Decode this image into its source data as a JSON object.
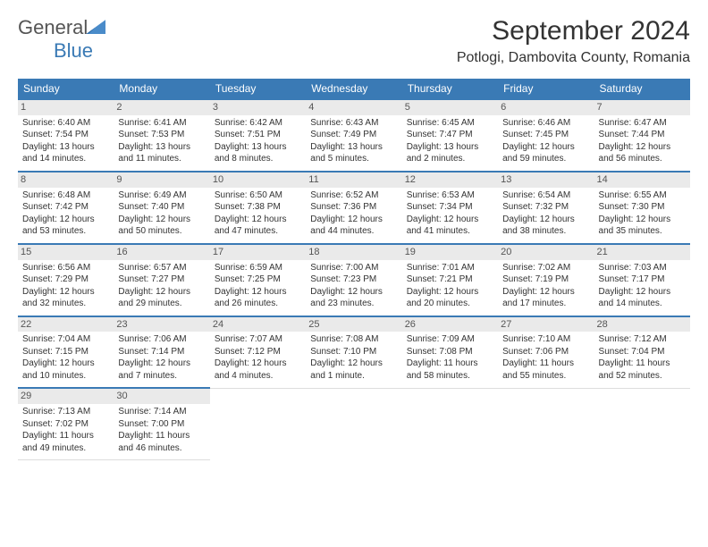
{
  "logo": {
    "text1": "General",
    "text2": "Blue"
  },
  "title": "September 2024",
  "location": "Potlogi, Dambovita County, Romania",
  "weekdays": [
    "Sunday",
    "Monday",
    "Tuesday",
    "Wednesday",
    "Thursday",
    "Friday",
    "Saturday"
  ],
  "colors": {
    "header_bg": "#3a7ab5",
    "row_accent": "#3a7ab5",
    "day_bg": "#eaeaea"
  },
  "weeks": [
    [
      {
        "n": "1",
        "r": "Sunrise: 6:40 AM",
        "s": "Sunset: 7:54 PM",
        "d1": "Daylight: 13 hours",
        "d2": "and 14 minutes."
      },
      {
        "n": "2",
        "r": "Sunrise: 6:41 AM",
        "s": "Sunset: 7:53 PM",
        "d1": "Daylight: 13 hours",
        "d2": "and 11 minutes."
      },
      {
        "n": "3",
        "r": "Sunrise: 6:42 AM",
        "s": "Sunset: 7:51 PM",
        "d1": "Daylight: 13 hours",
        "d2": "and 8 minutes."
      },
      {
        "n": "4",
        "r": "Sunrise: 6:43 AM",
        "s": "Sunset: 7:49 PM",
        "d1": "Daylight: 13 hours",
        "d2": "and 5 minutes."
      },
      {
        "n": "5",
        "r": "Sunrise: 6:45 AM",
        "s": "Sunset: 7:47 PM",
        "d1": "Daylight: 13 hours",
        "d2": "and 2 minutes."
      },
      {
        "n": "6",
        "r": "Sunrise: 6:46 AM",
        "s": "Sunset: 7:45 PM",
        "d1": "Daylight: 12 hours",
        "d2": "and 59 minutes."
      },
      {
        "n": "7",
        "r": "Sunrise: 6:47 AM",
        "s": "Sunset: 7:44 PM",
        "d1": "Daylight: 12 hours",
        "d2": "and 56 minutes."
      }
    ],
    [
      {
        "n": "8",
        "r": "Sunrise: 6:48 AM",
        "s": "Sunset: 7:42 PM",
        "d1": "Daylight: 12 hours",
        "d2": "and 53 minutes."
      },
      {
        "n": "9",
        "r": "Sunrise: 6:49 AM",
        "s": "Sunset: 7:40 PM",
        "d1": "Daylight: 12 hours",
        "d2": "and 50 minutes."
      },
      {
        "n": "10",
        "r": "Sunrise: 6:50 AM",
        "s": "Sunset: 7:38 PM",
        "d1": "Daylight: 12 hours",
        "d2": "and 47 minutes."
      },
      {
        "n": "11",
        "r": "Sunrise: 6:52 AM",
        "s": "Sunset: 7:36 PM",
        "d1": "Daylight: 12 hours",
        "d2": "and 44 minutes."
      },
      {
        "n": "12",
        "r": "Sunrise: 6:53 AM",
        "s": "Sunset: 7:34 PM",
        "d1": "Daylight: 12 hours",
        "d2": "and 41 minutes."
      },
      {
        "n": "13",
        "r": "Sunrise: 6:54 AM",
        "s": "Sunset: 7:32 PM",
        "d1": "Daylight: 12 hours",
        "d2": "and 38 minutes."
      },
      {
        "n": "14",
        "r": "Sunrise: 6:55 AM",
        "s": "Sunset: 7:30 PM",
        "d1": "Daylight: 12 hours",
        "d2": "and 35 minutes."
      }
    ],
    [
      {
        "n": "15",
        "r": "Sunrise: 6:56 AM",
        "s": "Sunset: 7:29 PM",
        "d1": "Daylight: 12 hours",
        "d2": "and 32 minutes."
      },
      {
        "n": "16",
        "r": "Sunrise: 6:57 AM",
        "s": "Sunset: 7:27 PM",
        "d1": "Daylight: 12 hours",
        "d2": "and 29 minutes."
      },
      {
        "n": "17",
        "r": "Sunrise: 6:59 AM",
        "s": "Sunset: 7:25 PM",
        "d1": "Daylight: 12 hours",
        "d2": "and 26 minutes."
      },
      {
        "n": "18",
        "r": "Sunrise: 7:00 AM",
        "s": "Sunset: 7:23 PM",
        "d1": "Daylight: 12 hours",
        "d2": "and 23 minutes."
      },
      {
        "n": "19",
        "r": "Sunrise: 7:01 AM",
        "s": "Sunset: 7:21 PM",
        "d1": "Daylight: 12 hours",
        "d2": "and 20 minutes."
      },
      {
        "n": "20",
        "r": "Sunrise: 7:02 AM",
        "s": "Sunset: 7:19 PM",
        "d1": "Daylight: 12 hours",
        "d2": "and 17 minutes."
      },
      {
        "n": "21",
        "r": "Sunrise: 7:03 AM",
        "s": "Sunset: 7:17 PM",
        "d1": "Daylight: 12 hours",
        "d2": "and 14 minutes."
      }
    ],
    [
      {
        "n": "22",
        "r": "Sunrise: 7:04 AM",
        "s": "Sunset: 7:15 PM",
        "d1": "Daylight: 12 hours",
        "d2": "and 10 minutes."
      },
      {
        "n": "23",
        "r": "Sunrise: 7:06 AM",
        "s": "Sunset: 7:14 PM",
        "d1": "Daylight: 12 hours",
        "d2": "and 7 minutes."
      },
      {
        "n": "24",
        "r": "Sunrise: 7:07 AM",
        "s": "Sunset: 7:12 PM",
        "d1": "Daylight: 12 hours",
        "d2": "and 4 minutes."
      },
      {
        "n": "25",
        "r": "Sunrise: 7:08 AM",
        "s": "Sunset: 7:10 PM",
        "d1": "Daylight: 12 hours",
        "d2": "and 1 minute."
      },
      {
        "n": "26",
        "r": "Sunrise: 7:09 AM",
        "s": "Sunset: 7:08 PM",
        "d1": "Daylight: 11 hours",
        "d2": "and 58 minutes."
      },
      {
        "n": "27",
        "r": "Sunrise: 7:10 AM",
        "s": "Sunset: 7:06 PM",
        "d1": "Daylight: 11 hours",
        "d2": "and 55 minutes."
      },
      {
        "n": "28",
        "r": "Sunrise: 7:12 AM",
        "s": "Sunset: 7:04 PM",
        "d1": "Daylight: 11 hours",
        "d2": "and 52 minutes."
      }
    ],
    [
      {
        "n": "29",
        "r": "Sunrise: 7:13 AM",
        "s": "Sunset: 7:02 PM",
        "d1": "Daylight: 11 hours",
        "d2": "and 49 minutes."
      },
      {
        "n": "30",
        "r": "Sunrise: 7:14 AM",
        "s": "Sunset: 7:00 PM",
        "d1": "Daylight: 11 hours",
        "d2": "and 46 minutes."
      },
      null,
      null,
      null,
      null,
      null
    ]
  ]
}
